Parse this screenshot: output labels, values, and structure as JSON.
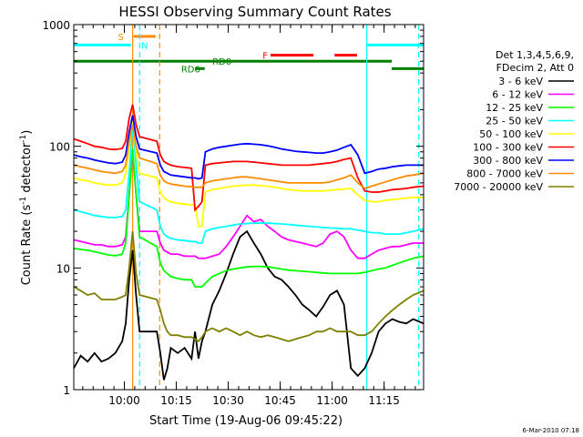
{
  "chart_data": {
    "type": "line",
    "title": "HESSI Observing Summary Count Rates",
    "xlabel": "Start Time (19-Aug-06 09:45:22)",
    "ylabel": "Count Rate (s",
    "ylabel_exp": "-1",
    "ylabel_tail": " detector",
    "ylabel_exp2": "-1",
    "ylabel_close": ")",
    "yscale": "log",
    "ylim": [
      1,
      1000
    ],
    "xlim_minutes": [
      0,
      101
    ],
    "xlim": [
      "09:45:22",
      "11:26:22"
    ],
    "x_ticks": [
      {
        "label": "10:00",
        "min": 14.6
      },
      {
        "label": "10:15",
        "min": 29.6
      },
      {
        "label": "10:30",
        "min": 44.6
      },
      {
        "label": "10:45",
        "min": 59.6
      },
      {
        "label": "11:00",
        "min": 74.6
      },
      {
        "label": "11:15",
        "min": 89.6
      }
    ],
    "y_ticks": [
      {
        "label": "1",
        "value": 1
      },
      {
        "label": "10",
        "value": 10
      },
      {
        "label": "100",
        "value": 100
      },
      {
        "label": "1000",
        "value": 1000
      }
    ],
    "legend_header": [
      "Det 1,3,4,5,6,9,",
      "FDecim 2, Att 0"
    ],
    "legend_position": "right",
    "footer_date": "6-Mar-2010 07:18",
    "flag_bars": [
      {
        "label": "S",
        "color": "#ff8c00",
        "value": 800,
        "segments": [
          [
            17.3,
            23.6
          ]
        ]
      },
      {
        "label": "N",
        "color": "#00ffff",
        "value": 680,
        "segments": [
          [
            0,
            16.5
          ],
          [
            84.5,
            101
          ]
        ],
        "label_min": 19.5
      },
      {
        "label": "RD0",
        "color": "#008000",
        "value": 500,
        "segments": [
          [
            0,
            91.8
          ]
        ],
        "label_min": 40.0
      },
      {
        "label": "RD6",
        "color": "#008000",
        "value": 435,
        "segments": [
          [
            35.0,
            37.8
          ],
          [
            91.8,
            101
          ]
        ],
        "label_min": 31.0
      },
      {
        "label": "F",
        "color": "#ff0000",
        "value": 560,
        "segments": [
          [
            56.8,
            69.2
          ],
          [
            75.3,
            81.8
          ]
        ],
        "label_min": 54.5
      }
    ],
    "vlines": [
      {
        "min": 19.0,
        "color": "#00ffff",
        "style": "dashed"
      },
      {
        "min": 24.8,
        "color": "#ff8c00",
        "style": "dashed"
      },
      {
        "min": 17.0,
        "color": "#ff8c00",
        "style": "solid"
      },
      {
        "min": 84.6,
        "color": "#00ffff",
        "style": "solid"
      },
      {
        "min": 99.6,
        "color": "#00ffff",
        "style": "dashed"
      }
    ],
    "x": [
      0,
      2,
      4,
      6,
      8,
      10,
      12,
      14,
      15,
      16,
      17,
      18,
      19,
      24,
      25,
      26,
      27,
      28,
      30,
      32,
      34,
      35,
      36,
      37,
      38,
      40,
      42,
      44,
      46,
      48,
      50,
      52,
      54,
      56,
      58,
      60,
      62,
      64,
      66,
      68,
      70,
      72,
      74,
      76,
      78,
      80,
      82,
      84,
      86,
      88,
      90,
      92,
      94,
      96,
      98,
      101
    ],
    "series": [
      {
        "name": "3 - 6 keV",
        "color": "#000000",
        "values": [
          1.5,
          1.9,
          1.7,
          2.0,
          1.7,
          1.8,
          2.0,
          2.5,
          3.5,
          8.0,
          14.0,
          6.0,
          3.0,
          3.0,
          2.0,
          1.2,
          1.5,
          2.2,
          2.0,
          2.2,
          1.8,
          3.0,
          1.8,
          2.5,
          3.0,
          5.0,
          6.5,
          9.0,
          13.0,
          18.0,
          20.0,
          16.0,
          13.0,
          10.0,
          8.5,
          8.0,
          7.0,
          6.0,
          5.0,
          4.5,
          4.0,
          4.8,
          6.0,
          6.5,
          5.0,
          1.5,
          1.3,
          1.5,
          2.0,
          3.0,
          3.5,
          3.8,
          3.6,
          3.5,
          3.8,
          3.5
        ]
      },
      {
        "name": "6 - 12 keV",
        "color": "#ff00ff",
        "values": [
          17.0,
          16.5,
          16.0,
          15.5,
          15.5,
          15.0,
          15.0,
          15.5,
          18.0,
          40.0,
          90.0,
          40.0,
          20.0,
          20.0,
          16.0,
          14.0,
          13.5,
          13.0,
          13.0,
          12.5,
          12.5,
          12.5,
          12.0,
          12.0,
          12.0,
          12.5,
          13.0,
          15.0,
          18.0,
          22.0,
          27.0,
          24.0,
          25.0,
          22.0,
          20.0,
          18.0,
          17.0,
          16.5,
          16.0,
          15.5,
          15.0,
          16.0,
          19.0,
          20.0,
          18.0,
          14.0,
          12.0,
          12.0,
          13.0,
          14.0,
          14.5,
          15.0,
          15.0,
          15.5,
          16.0,
          16.0
        ]
      },
      {
        "name": "12 - 25 keV",
        "color": "#00ff00",
        "values": [
          14.5,
          14.2,
          14.0,
          13.6,
          13.2,
          12.8,
          12.6,
          13.0,
          16.0,
          40.0,
          95.0,
          40.0,
          18.0,
          15.0,
          11.0,
          9.5,
          9.0,
          8.5,
          8.2,
          8.0,
          8.0,
          7.0,
          7.0,
          7.0,
          7.5,
          8.5,
          9.0,
          9.5,
          9.8,
          10.0,
          10.2,
          10.3,
          10.3,
          10.2,
          10.0,
          9.8,
          9.6,
          9.5,
          9.4,
          9.3,
          9.2,
          9.1,
          9.0,
          9.0,
          9.0,
          9.0,
          9.0,
          9.2,
          9.5,
          9.8,
          10.0,
          10.5,
          11.0,
          11.5,
          12.0,
          12.5
        ]
      },
      {
        "name": "25 - 50 keV",
        "color": "#00ffff",
        "values": [
          30.0,
          29.0,
          28.0,
          27.0,
          26.5,
          26.0,
          26.0,
          26.5,
          30.0,
          60.0,
          150.0,
          70.0,
          35.0,
          30.0,
          22.0,
          19.0,
          18.0,
          17.5,
          17.0,
          16.8,
          16.5,
          16.5,
          16.0,
          16.0,
          20.0,
          21.0,
          21.5,
          22.0,
          22.5,
          23.0,
          23.2,
          23.3,
          23.4,
          23.3,
          23.2,
          23.0,
          22.8,
          22.5,
          22.2,
          22.0,
          21.8,
          21.5,
          21.3,
          21.2,
          21.0,
          21.0,
          20.5,
          20.0,
          19.5,
          19.5,
          19.0,
          19.0,
          19.0,
          19.5,
          20.0,
          21.0
        ]
      },
      {
        "name": "50 - 100 keV",
        "color": "#ffff00",
        "values": [
          55.0,
          53.0,
          52.0,
          50.0,
          49.0,
          48.0,
          48.0,
          50.0,
          60.0,
          100.0,
          160.0,
          90.0,
          60.0,
          55.0,
          42.0,
          38.0,
          36.0,
          35.0,
          34.0,
          33.5,
          33.0,
          33.0,
          22.0,
          22.0,
          42.0,
          44.0,
          45.0,
          46.0,
          47.0,
          47.5,
          48.0,
          48.0,
          47.5,
          47.0,
          46.0,
          45.0,
          44.0,
          43.5,
          43.0,
          43.0,
          43.0,
          43.0,
          43.5,
          44.0,
          44.5,
          45.0,
          40.0,
          36.0,
          35.0,
          35.0,
          36.0,
          36.5,
          37.0,
          37.5,
          38.0,
          38.0
        ]
      },
      {
        "name": "100 - 300 keV",
        "color": "#ff0000",
        "values": [
          115.0,
          110.0,
          105.0,
          100.0,
          98.0,
          95.0,
          94.0,
          96.0,
          110.0,
          170.0,
          220.0,
          150.0,
          120.0,
          110.0,
          85.0,
          75.0,
          72.0,
          70.0,
          68.0,
          67.0,
          66.0,
          30.0,
          32.0,
          35.0,
          70.0,
          72.0,
          73.0,
          74.0,
          75.0,
          75.0,
          75.0,
          74.0,
          73.0,
          72.0,
          71.0,
          70.0,
          70.0,
          70.0,
          70.0,
          70.0,
          71.0,
          72.0,
          73.0,
          75.0,
          78.0,
          80.0,
          55.0,
          43.0,
          42.0,
          42.0,
          43.0,
          44.0,
          44.5,
          45.0,
          46.0,
          47.0
        ]
      },
      {
        "name": "300 - 800 keV",
        "color": "#0000ff",
        "values": [
          85.0,
          82.0,
          80.0,
          77.0,
          75.0,
          73.0,
          72.0,
          74.0,
          85.0,
          130.0,
          180.0,
          120.0,
          95.0,
          88.0,
          70.0,
          62.0,
          60.0,
          58.0,
          57.0,
          56.0,
          55.0,
          55.0,
          54.0,
          55.0,
          90.0,
          95.0,
          98.0,
          100.0,
          102.0,
          104.0,
          105.0,
          104.0,
          103.0,
          101.0,
          98.0,
          95.0,
          93.0,
          91.0,
          90.0,
          89.0,
          88.0,
          88.0,
          90.0,
          93.0,
          98.0,
          103.0,
          85.0,
          60.0,
          62.0,
          65.0,
          66.0,
          68.0,
          69.0,
          70.0,
          70.0,
          70.0
        ]
      },
      {
        "name": "800 - 7000 keV",
        "color": "#ff8c00",
        "values": [
          70.0,
          68.0,
          66.0,
          64.0,
          62.0,
          61.0,
          60.0,
          62.0,
          70.0,
          110.0,
          150.0,
          100.0,
          80.0,
          72.0,
          58.0,
          52.0,
          50.0,
          49.0,
          48.0,
          47.0,
          46.5,
          46.0,
          46.0,
          46.0,
          50.0,
          52.0,
          53.0,
          54.0,
          55.0,
          56.0,
          56.0,
          55.0,
          54.0,
          53.0,
          52.0,
          51.0,
          50.0,
          50.0,
          50.0,
          50.0,
          50.0,
          50.0,
          51.0,
          53.0,
          55.0,
          58.0,
          50.0,
          45.0,
          47.0,
          49.0,
          51.0,
          53.0,
          55.0,
          57.0,
          58.0,
          60.0
        ]
      },
      {
        "name": "7000 - 20000 keV",
        "color": "#808000",
        "values": [
          7.0,
          6.5,
          6.0,
          6.2,
          5.5,
          5.5,
          5.5,
          5.8,
          6.0,
          10.0,
          20.0,
          9.0,
          6.0,
          5.5,
          4.5,
          3.5,
          3.0,
          2.8,
          2.8,
          2.7,
          2.7,
          2.6,
          2.5,
          2.7,
          3.0,
          3.2,
          3.0,
          3.2,
          3.0,
          2.8,
          3.0,
          2.8,
          2.7,
          2.8,
          2.7,
          2.6,
          2.5,
          2.6,
          2.7,
          2.8,
          3.0,
          3.0,
          3.2,
          3.0,
          3.0,
          3.0,
          2.8,
          2.8,
          3.0,
          3.5,
          4.0,
          4.5,
          5.0,
          5.5,
          6.0,
          6.5
        ]
      }
    ]
  }
}
